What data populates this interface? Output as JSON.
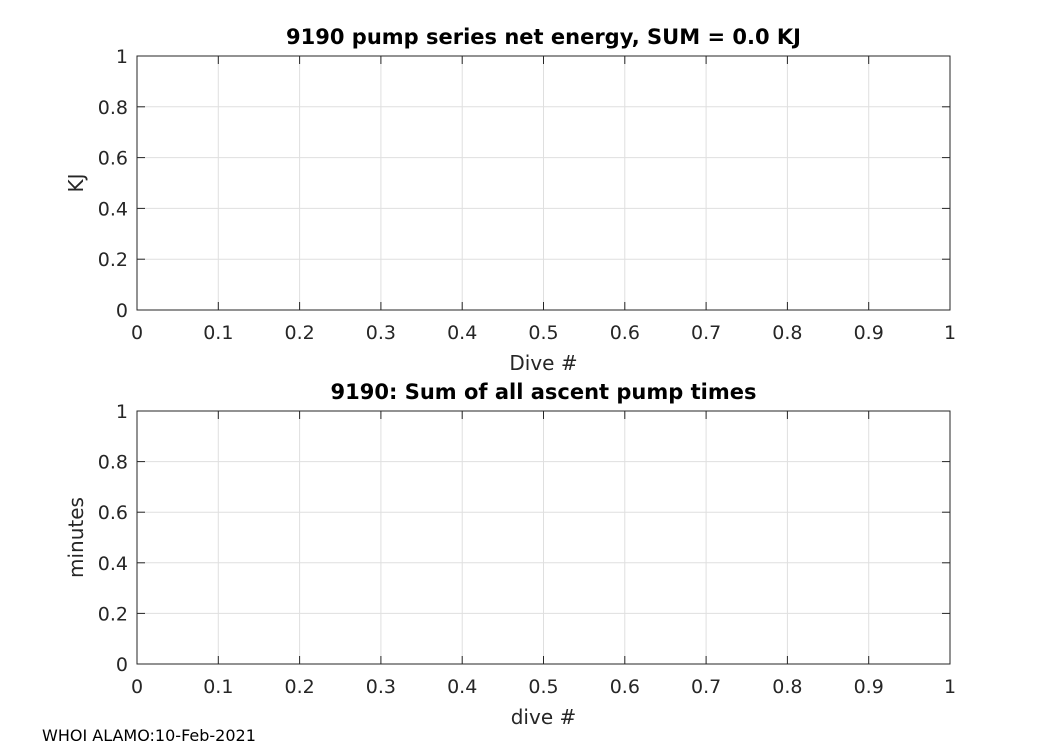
{
  "chart_data": [
    {
      "type": "line",
      "title": "9190 pump series net energy, SUM =   0.0 KJ",
      "xlabel": "Dive #",
      "ylabel": "KJ",
      "xlim": [
        0,
        1
      ],
      "ylim": [
        0,
        1
      ],
      "xticks": [
        "0",
        "0.1",
        "0.2",
        "0.3",
        "0.4",
        "0.5",
        "0.6",
        "0.7",
        "0.8",
        "0.9",
        "1"
      ],
      "yticks": [
        "0",
        "0.2",
        "0.4",
        "0.6",
        "0.8",
        "1"
      ],
      "grid": true,
      "series": []
    },
    {
      "type": "line",
      "title": "9190: Sum of all ascent pump times",
      "xlabel": "dive #",
      "ylabel": "minutes",
      "xlim": [
        0,
        1
      ],
      "ylim": [
        0,
        1
      ],
      "xticks": [
        "0",
        "0.1",
        "0.2",
        "0.3",
        "0.4",
        "0.5",
        "0.6",
        "0.7",
        "0.8",
        "0.9",
        "1"
      ],
      "yticks": [
        "0",
        "0.2",
        "0.4",
        "0.6",
        "0.8",
        "1"
      ],
      "grid": true,
      "series": []
    }
  ],
  "footer": "WHOI ALAMO:10-Feb-2021"
}
